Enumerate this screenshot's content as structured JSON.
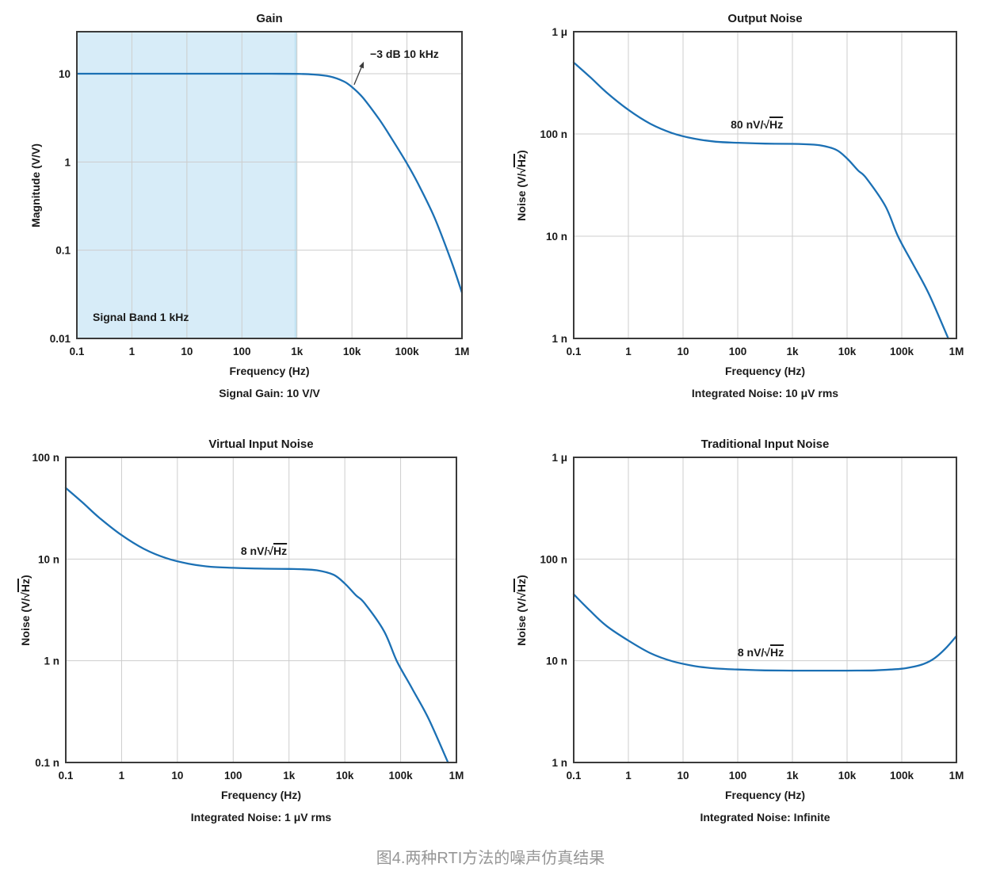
{
  "caption": "图4.两种RTI方法的噪声仿真结果",
  "colors": {
    "curve": "#1b70b4",
    "band_fill": "#d7ecf8",
    "band_edge": "#c3e2f2",
    "grid": "#cdcdcd",
    "frame": "#3a3a3a",
    "text": "#1a1a1a",
    "caption_text": "#969696"
  },
  "chart_data": [
    {
      "id": "gain",
      "type": "line",
      "title": "Gain",
      "xlabel": "Frequency (Hz)",
      "subtitle": "Signal Gain: 10 V/V",
      "ylabel": {
        "pre": "Magnitude (V/V)",
        "sqrt_arg": "",
        "post": ""
      },
      "values_unit": "V/V",
      "xlim_log": [
        -1,
        6
      ],
      "ylim_log": [
        -2,
        1.476
      ],
      "grid": true,
      "x_ticks": [
        {
          "label": "0.1",
          "log": -1
        },
        {
          "label": "1",
          "log": 0
        },
        {
          "label": "10",
          "log": 1
        },
        {
          "label": "100",
          "log": 2
        },
        {
          "label": "1k",
          "log": 3
        },
        {
          "label": "10k",
          "log": 4
        },
        {
          "label": "100k",
          "log": 5
        },
        {
          "label": "1M",
          "log": 6
        }
      ],
      "y_ticks": [
        {
          "label": "10",
          "log": 1
        },
        {
          "label": "1",
          "log": 0
        },
        {
          "label": "0.1",
          "log": -1
        },
        {
          "label": "0.01",
          "log": -2
        }
      ],
      "value_log_offset": 0,
      "band": {
        "label": "Signal Band 1 kHz",
        "from_log": -1,
        "to_log": 3,
        "label_x_log": -0.712,
        "label_y_val": 0.0206
      },
      "series": [
        {
          "name": "Gain",
          "x_log": [
            -1,
            0,
            1,
            2,
            2.5,
            3,
            3.3,
            3.6,
            3.85,
            4,
            4.2,
            4.5,
            4.7,
            5,
            5.2,
            5.5,
            5.8,
            6
          ],
          "values": [
            10,
            10,
            10,
            10,
            9.99,
            9.95,
            9.8,
            9.3,
            8.2,
            7.06,
            5.34,
            3.01,
            1.94,
            0.96,
            0.57,
            0.235,
            0.077,
            0.033
          ]
        }
      ],
      "annotation": {
        "pre": "−3 dB 10 kHz",
        "sqrt_arg": "",
        "post": "",
        "align": "left",
        "x_log": 4.33,
        "y_val": 19.8,
        "arrow": {
          "tail_x_log": 4.04,
          "tail_y_val": 7.5,
          "head_x_log": 4.216,
          "head_y_val": 13.7
        }
      }
    },
    {
      "id": "output-noise",
      "type": "line",
      "title": "Output Noise",
      "xlabel": "Frequency (Hz)",
      "subtitle": "Integrated Noise: 10 μV rms",
      "ylabel": {
        "pre": "Noise (V/√",
        "sqrt_arg": "Hz",
        "post": ")"
      },
      "values_unit": "nV/√Hz",
      "xlim_log": [
        -1,
        6
      ],
      "ylim_log": [
        -9,
        -6
      ],
      "grid": true,
      "x_ticks": [
        {
          "label": "0.1",
          "log": -1
        },
        {
          "label": "1",
          "log": 0
        },
        {
          "label": "10",
          "log": 1
        },
        {
          "label": "100",
          "log": 2
        },
        {
          "label": "1k",
          "log": 3
        },
        {
          "label": "10k",
          "log": 4
        },
        {
          "label": "100k",
          "log": 5
        },
        {
          "label": "1M",
          "log": 6
        }
      ],
      "y_ticks": [
        {
          "label": "1 μ",
          "log": -6
        },
        {
          "label": "100 n",
          "log": -7
        },
        {
          "label": "10 n",
          "log": -8
        },
        {
          "label": "1 n",
          "log": -9
        }
      ],
      "value_log_offset": -9,
      "series": [
        {
          "name": "Output Noise",
          "x_log": [
            -1,
            -0.7,
            -0.4,
            0,
            0.4,
            0.8,
            1.2,
            1.6,
            2,
            2.5,
            3,
            3.2,
            3.5,
            3.8,
            4,
            4.2,
            4.35,
            4.7,
            4.93,
            5.2,
            5.5,
            5.85
          ],
          "values": [
            500,
            360,
            255,
            172,
            126,
            102,
            90,
            84,
            82,
            80.5,
            80,
            79.5,
            77.5,
            70,
            57.5,
            44,
            37,
            19.7,
            10,
            5.4,
            2.7,
            1.0
          ]
        }
      ],
      "annotation": {
        "pre": "80 nV/√",
        "sqrt_arg": "Hz",
        "post": "",
        "align": "center",
        "x_log": 2.35,
        "y_val": 143
      }
    },
    {
      "id": "virtual-input-noise",
      "type": "line",
      "title": "Virtual Input Noise",
      "xlabel": "Frequency (Hz)",
      "subtitle": "Integrated Noise: 1 μV rms",
      "ylabel": {
        "pre": "Noise (V/√",
        "sqrt_arg": "Hz",
        "post": ")"
      },
      "values_unit": "nV/√Hz",
      "xlim_log": [
        -1,
        6
      ],
      "ylim_log": [
        -10,
        -7
      ],
      "grid": true,
      "x_ticks": [
        {
          "label": "0.1",
          "log": -1
        },
        {
          "label": "1",
          "log": 0
        },
        {
          "label": "10",
          "log": 1
        },
        {
          "label": "100",
          "log": 2
        },
        {
          "label": "1k",
          "log": 3
        },
        {
          "label": "10k",
          "log": 4
        },
        {
          "label": "100k",
          "log": 5
        },
        {
          "label": "1M",
          "log": 6
        }
      ],
      "y_ticks": [
        {
          "label": "100 n",
          "log": -7
        },
        {
          "label": "10 n",
          "log": -8
        },
        {
          "label": "1 n",
          "log": -9
        },
        {
          "label": "0.1 n",
          "log": -10
        }
      ],
      "value_log_offset": -9,
      "series": [
        {
          "name": "Virtual Input Noise",
          "x_log": [
            -1,
            -0.7,
            -0.4,
            0,
            0.4,
            0.8,
            1.2,
            1.6,
            2,
            2.5,
            3,
            3.2,
            3.5,
            3.8,
            4,
            4.2,
            4.35,
            4.7,
            4.93,
            5.2,
            5.5,
            5.85
          ],
          "values": [
            50,
            36,
            25.5,
            17.2,
            12.6,
            10.2,
            9,
            8.4,
            8.2,
            8.05,
            8,
            7.95,
            7.75,
            7,
            5.75,
            4.4,
            3.7,
            1.97,
            1,
            0.54,
            0.27,
            0.1
          ]
        }
      ],
      "annotation": {
        "pre": "8 nV/√",
        "sqrt_arg": "Hz",
        "post": "",
        "align": "center",
        "x_log": 2.55,
        "y_val": 13.9
      }
    },
    {
      "id": "traditional-input-noise",
      "type": "line",
      "title": "Traditional Input Noise",
      "xlabel": "Frequency (Hz)",
      "subtitle": "Integrated Noise: Infinite",
      "ylabel": {
        "pre": "Noise (V/√",
        "sqrt_arg": "Hz",
        "post": ")"
      },
      "values_unit": "nV/√Hz",
      "xlim_log": [
        -1,
        6
      ],
      "ylim_log": [
        -9,
        -6
      ],
      "grid": true,
      "x_ticks": [
        {
          "label": "0.1",
          "log": -1
        },
        {
          "label": "1",
          "log": 0
        },
        {
          "label": "10",
          "log": 1
        },
        {
          "label": "100",
          "log": 2
        },
        {
          "label": "1k",
          "log": 3
        },
        {
          "label": "10k",
          "log": 4
        },
        {
          "label": "100k",
          "log": 5
        },
        {
          "label": "1M",
          "log": 6
        }
      ],
      "y_ticks": [
        {
          "label": "1 μ",
          "log": -6
        },
        {
          "label": "100 n",
          "log": -7
        },
        {
          "label": "10 n",
          "log": -8
        },
        {
          "label": "1 n",
          "log": -9
        }
      ],
      "value_log_offset": -9,
      "series": [
        {
          "name": "Traditional Input Noise",
          "x_log": [
            -1,
            -0.7,
            -0.4,
            0,
            0.4,
            0.8,
            1.2,
            1.6,
            2,
            2.5,
            3,
            3.5,
            4,
            4.5,
            4.8,
            5,
            5.2,
            5.4,
            5.6,
            5.8,
            6
          ],
          "values": [
            45,
            31,
            22,
            15.8,
            11.9,
            9.9,
            8.9,
            8.4,
            8.2,
            8.05,
            8,
            8,
            8,
            8.05,
            8.2,
            8.35,
            8.7,
            9.3,
            10.6,
            13.2,
            17.5
          ]
        }
      ],
      "annotation": {
        "pre": "8 nV/√",
        "sqrt_arg": "Hz",
        "post": "",
        "align": "center",
        "x_log": 2.42,
        "y_val": 14.0
      }
    }
  ]
}
